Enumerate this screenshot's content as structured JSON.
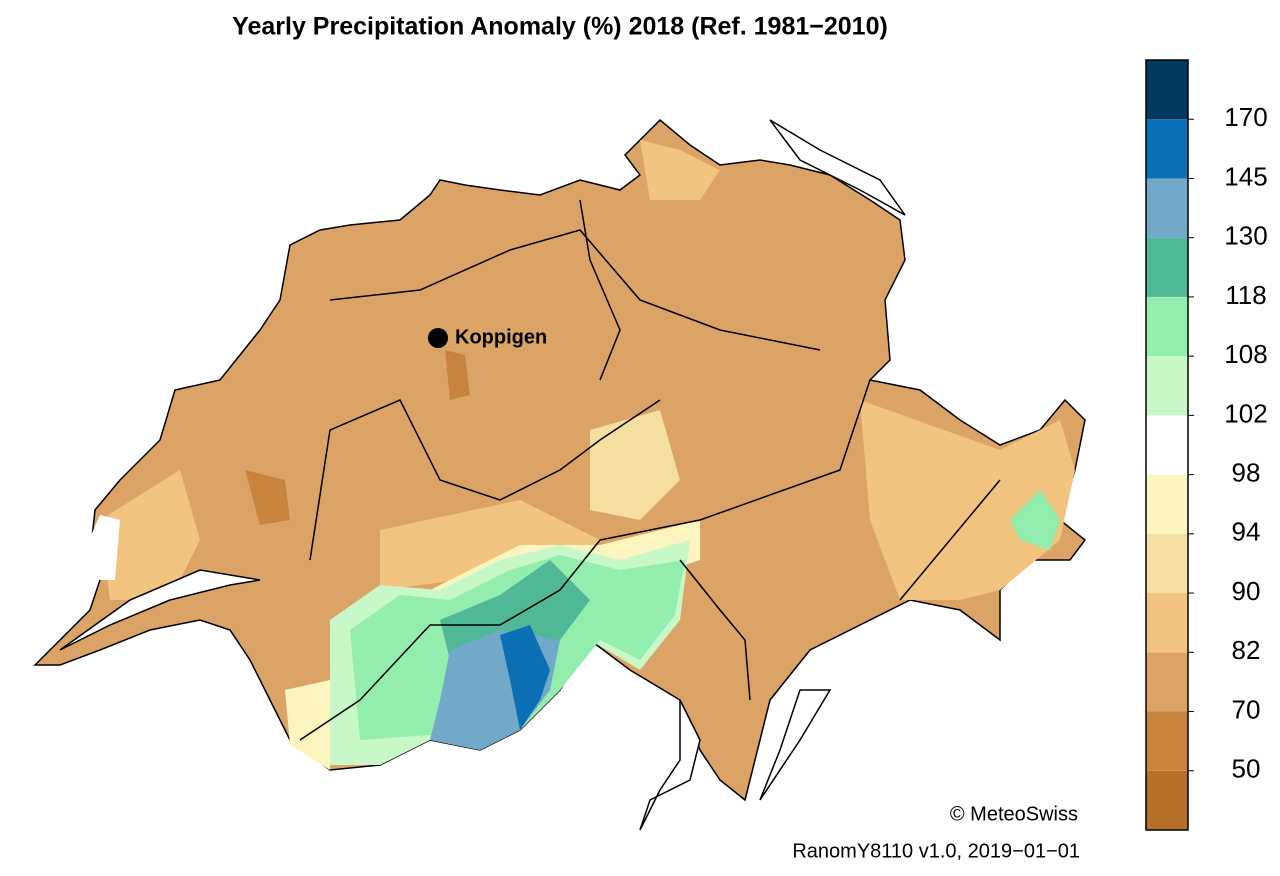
{
  "title": "Yearly Precipitation Anomaly (%) 2018  (Ref. 1981−2010)",
  "station": {
    "name": "Koppigen"
  },
  "credit": "© MeteoSwiss",
  "footer": "RanomY8110 v1.0, 2019−01−01",
  "colorbar": {
    "colors": [
      "#b5702b",
      "#c8843e",
      "#dba466",
      "#f1c57f",
      "#f4dea0",
      "#fcf5c0",
      "#ffffff",
      "#c8f7c8",
      "#93eeae",
      "#4fb896",
      "#72a9c9",
      "#0a6fb4",
      "#003a5c"
    ],
    "levels": [
      50,
      70,
      82,
      90,
      94,
      98,
      102,
      108,
      118,
      130,
      145,
      170
    ]
  }
}
